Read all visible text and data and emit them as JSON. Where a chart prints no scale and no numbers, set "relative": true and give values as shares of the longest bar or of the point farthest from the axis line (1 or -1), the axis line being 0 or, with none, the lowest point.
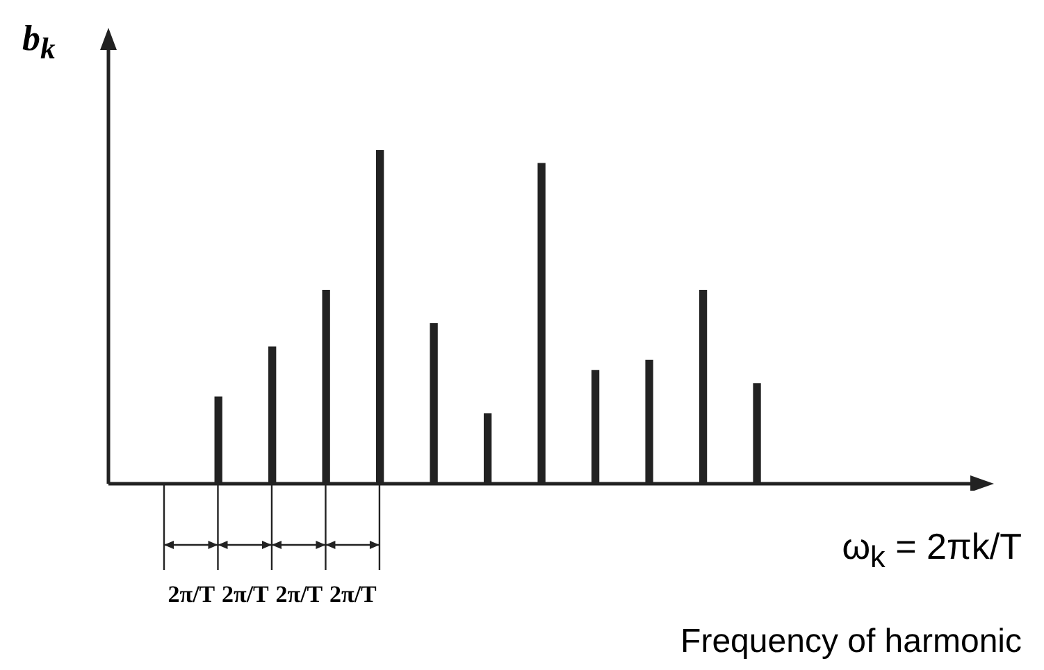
{
  "chart_data": {
    "type": "bar",
    "relative": true,
    "ylabel": "b$_{k}$",
    "xlabel": "ω$_{k}$ = 2πk/T",
    "categories": [
      null,
      null,
      null,
      null,
      null,
      null,
      null,
      null,
      null,
      null,
      null
    ],
    "values": [
      0.26,
      0.41,
      0.58,
      1,
      0.48,
      0.21,
      0.96,
      0.34,
      0.37,
      0.58,
      0.3
    ],
    "color": "#222222",
    "annotations": [
      "2π/T",
      "2π/T",
      "2π/T",
      "2π/T",
      "Frequency of harmonic"
    ]
  }
}
